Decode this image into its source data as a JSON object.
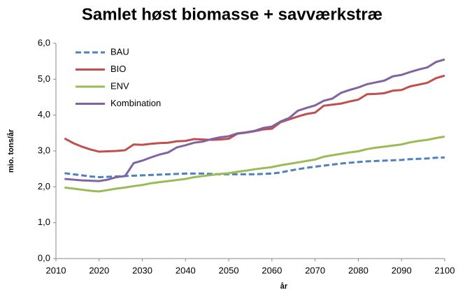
{
  "chart_data": {
    "type": "line",
    "title": "Samlet høst biomasse + savværkstræ",
    "xlabel": "år",
    "ylabel": "mio. tons/år",
    "x": [
      2012,
      2014,
      2016,
      2018,
      2020,
      2022,
      2024,
      2026,
      2028,
      2030,
      2032,
      2034,
      2036,
      2038,
      2040,
      2042,
      2044,
      2046,
      2048,
      2050,
      2052,
      2054,
      2056,
      2058,
      2060,
      2062,
      2064,
      2066,
      2068,
      2070,
      2072,
      2074,
      2076,
      2078,
      2080,
      2082,
      2084,
      2086,
      2088,
      2090,
      2092,
      2094,
      2096,
      2098,
      2100
    ],
    "series": [
      {
        "name": "BAU",
        "color": "#4f81bd",
        "style": "dashed",
        "values": [
          2.38,
          2.35,
          2.32,
          2.29,
          2.27,
          2.28,
          2.29,
          2.3,
          2.31,
          2.32,
          2.33,
          2.34,
          2.35,
          2.36,
          2.37,
          2.37,
          2.37,
          2.36,
          2.35,
          2.35,
          2.35,
          2.35,
          2.35,
          2.36,
          2.37,
          2.4,
          2.45,
          2.49,
          2.53,
          2.56,
          2.59,
          2.62,
          2.65,
          2.67,
          2.69,
          2.71,
          2.72,
          2.73,
          2.74,
          2.75,
          2.77,
          2.78,
          2.79,
          2.81,
          2.82
        ]
      },
      {
        "name": "BIO",
        "color": "#c0504d",
        "style": "solid",
        "values": [
          3.35,
          3.22,
          3.12,
          3.04,
          2.98,
          2.99,
          3.0,
          3.02,
          3.18,
          3.17,
          3.2,
          3.22,
          3.23,
          3.27,
          3.28,
          3.33,
          3.32,
          3.31,
          3.32,
          3.34,
          3.48,
          3.51,
          3.55,
          3.6,
          3.62,
          3.8,
          3.88,
          3.96,
          4.03,
          4.07,
          4.26,
          4.29,
          4.32,
          4.38,
          4.43,
          4.58,
          4.59,
          4.61,
          4.68,
          4.7,
          4.8,
          4.85,
          4.9,
          5.03,
          5.1
        ]
      },
      {
        "name": "ENV",
        "color": "#9bbb59",
        "style": "solid",
        "values": [
          1.98,
          1.95,
          1.92,
          1.89,
          1.87,
          1.91,
          1.95,
          1.98,
          2.02,
          2.05,
          2.1,
          2.13,
          2.16,
          2.19,
          2.22,
          2.27,
          2.3,
          2.33,
          2.36,
          2.38,
          2.42,
          2.45,
          2.49,
          2.52,
          2.55,
          2.6,
          2.64,
          2.68,
          2.72,
          2.76,
          2.84,
          2.88,
          2.92,
          2.96,
          2.99,
          3.05,
          3.09,
          3.12,
          3.15,
          3.18,
          3.24,
          3.28,
          3.31,
          3.36,
          3.4
        ]
      },
      {
        "name": "Kombination",
        "color": "#8064a2",
        "style": "solid",
        "values": [
          2.22,
          2.2,
          2.18,
          2.17,
          2.16,
          2.2,
          2.27,
          2.3,
          2.66,
          2.73,
          2.82,
          2.9,
          2.96,
          3.1,
          3.16,
          3.23,
          3.26,
          3.33,
          3.38,
          3.41,
          3.49,
          3.52,
          3.56,
          3.64,
          3.68,
          3.82,
          3.92,
          4.12,
          4.2,
          4.27,
          4.4,
          4.46,
          4.62,
          4.7,
          4.77,
          4.86,
          4.91,
          4.96,
          5.08,
          5.12,
          5.2,
          5.27,
          5.33,
          5.48,
          5.55
        ]
      }
    ],
    "xlim": [
      2010,
      2100
    ],
    "xticks": [
      2010,
      2020,
      2030,
      2040,
      2050,
      2060,
      2070,
      2080,
      2090,
      2100
    ],
    "ylim": [
      0,
      6
    ],
    "yticks": [
      {
        "value": 0,
        "label": "0,0"
      },
      {
        "value": 1,
        "label": "1,0"
      },
      {
        "value": 2,
        "label": "2,0"
      },
      {
        "value": 3,
        "label": "3,0"
      },
      {
        "value": 4,
        "label": "4,0"
      },
      {
        "value": 5,
        "label": "5,0"
      },
      {
        "value": 6,
        "label": "6,0"
      }
    ],
    "grid": false,
    "legend": "upper left"
  }
}
